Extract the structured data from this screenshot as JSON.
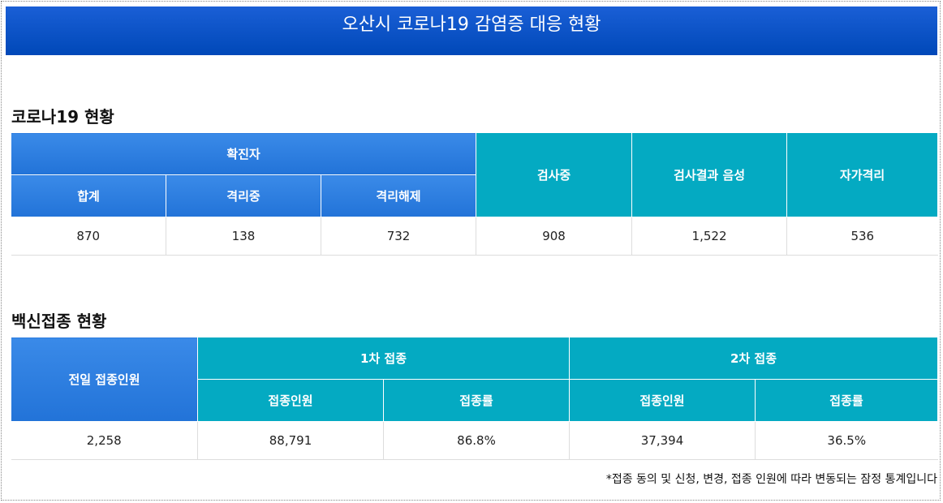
{
  "header": {
    "title": "오산시 코로나19 감염증 대응 현황"
  },
  "covid": {
    "title": "코로나19 현황",
    "headers": {
      "confirmed": "확진자",
      "total": "합계",
      "isolating": "격리중",
      "released": "격리해제",
      "testing": "검사중",
      "negative": "검사결과 음성",
      "self_quarantine": "자가격리"
    },
    "row": [
      "870",
      "138",
      "732",
      "908",
      "1,522",
      "536"
    ]
  },
  "vaccine": {
    "title": "백신접종 현황",
    "headers": {
      "previous_day": "전일 접종인원",
      "first": "1차 접종",
      "second": "2차 접종",
      "first_count": "접종인원",
      "first_rate": "접종률",
      "second_count": "접종인원",
      "second_rate": "접종률"
    },
    "row": [
      "2,258",
      "88,791",
      "86.8%",
      "37,394",
      "36.5%"
    ]
  },
  "note": "*접종 동의 및 신청, 변경, 접종 인원에 따라 변동되는 잠정 통계입니다"
}
